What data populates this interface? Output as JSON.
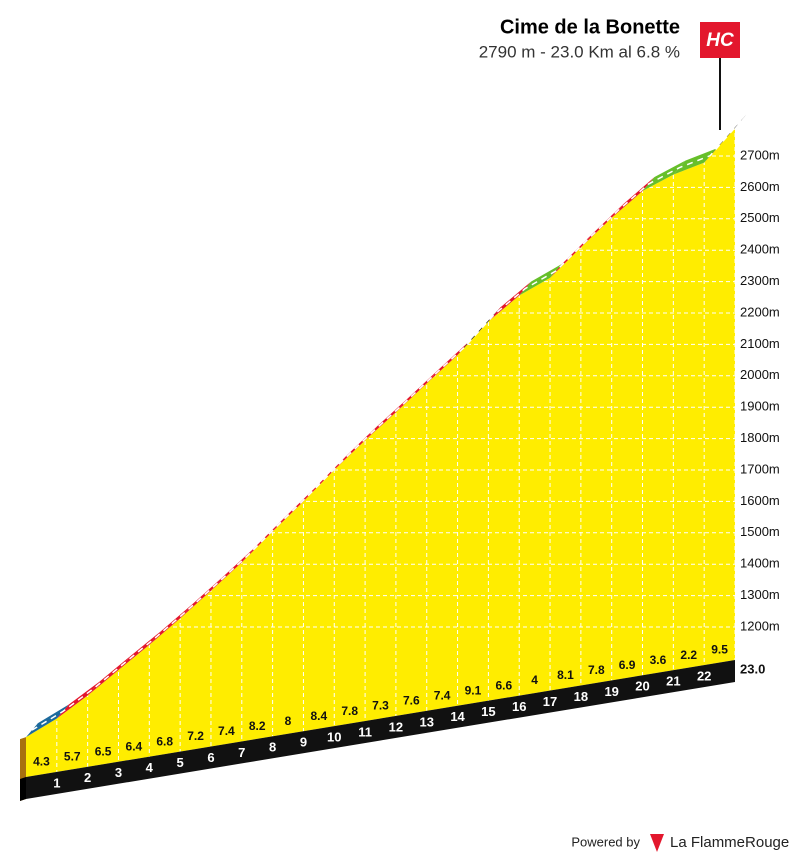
{
  "chart_data": {
    "type": "profile",
    "title": "Cime de la Bonette",
    "subtitle": "2790 m - 23.0 Km al 6.8 %",
    "category": "HC",
    "summit_altitude": 2790,
    "values": [
      4.3,
      5.7,
      6.5,
      6.4,
      6.8,
      7.2,
      7.4,
      8.2,
      8.0,
      8.4,
      7.8,
      7.3,
      7.6,
      7.4,
      9.1,
      6.6,
      4.0,
      8.1,
      7.8,
      6.9,
      3.6,
      2.2,
      9.5
    ],
    "colors": [
      "#1d6a9c",
      "#e3172d",
      "#e3172d",
      "#e3172d",
      "#e3172d",
      "#e3172d",
      "#e3172d",
      "#e3172d",
      "#e3172d",
      "#e3172d",
      "#e3172d",
      "#e3172d",
      "#e3172d",
      "#e3172d",
      "#111111",
      "#e3172d",
      "#66bf2a",
      "#e3172d",
      "#e3172d",
      "#e3172d",
      "#66bf2a",
      "#66bf2a",
      "#111111"
    ],
    "xlim": [
      0,
      23
    ],
    "xticks": [
      1,
      2,
      3,
      4,
      5,
      6,
      7,
      8,
      9,
      10,
      11,
      12,
      13,
      14,
      15,
      16,
      17,
      18,
      19,
      20,
      21,
      22,
      {
        "value": 23,
        "label": "23.0"
      }
    ],
    "ylim": [
      1000,
      2800
    ],
    "yticks": [
      {
        "value": 1200,
        "label": "1200m"
      },
      {
        "value": 1300,
        "label": "1300m"
      },
      {
        "value": 1400,
        "label": "1400m"
      },
      {
        "value": 1500,
        "label": "1500m"
      },
      {
        "value": 1600,
        "label": "1600m"
      },
      {
        "value": 1700,
        "label": "1700m"
      },
      {
        "value": 1800,
        "label": "1800m"
      },
      {
        "value": 1900,
        "label": "1900m"
      },
      {
        "value": 2000,
        "label": "2000m"
      },
      {
        "value": 2100,
        "label": "2100m"
      },
      {
        "value": 2200,
        "label": "2200m"
      },
      {
        "value": 2300,
        "label": "2300m"
      },
      {
        "value": 2400,
        "label": "2400m"
      },
      {
        "value": 2500,
        "label": "2500m"
      },
      {
        "value": 2600,
        "label": "2600m"
      },
      {
        "value": 2700,
        "label": "2700m"
      }
    ],
    "grid": true,
    "fill": "#ffed00",
    "footer": {
      "powered": "Powered by",
      "brand": "La FlammeRouge"
    }
  }
}
